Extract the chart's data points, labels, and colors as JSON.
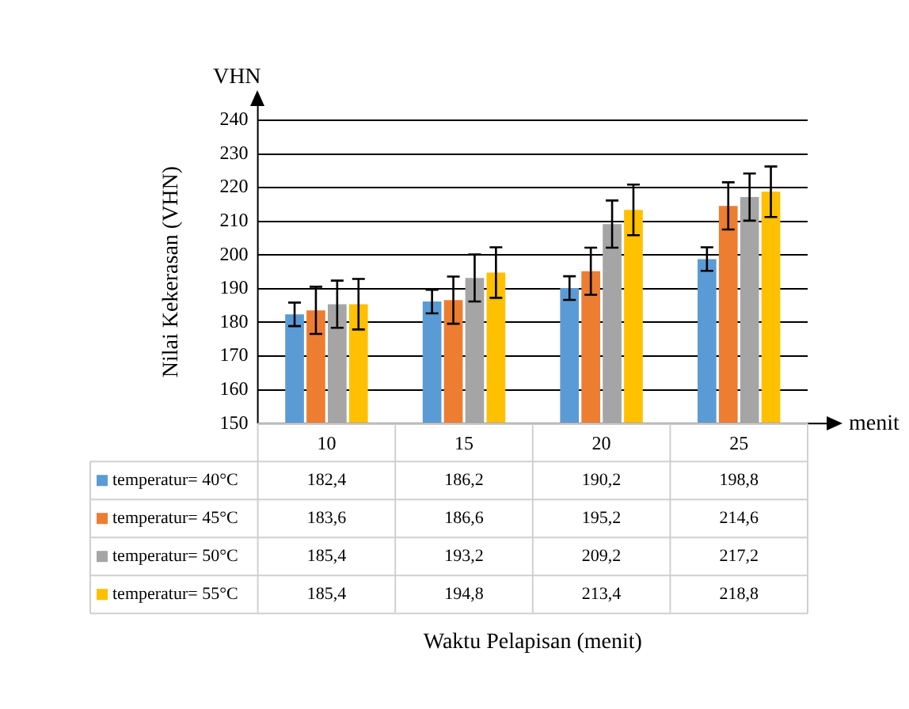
{
  "chart_data": {
    "type": "bar",
    "ylabel": "Nilai Kekerasan (VHN)",
    "xlabel": "menit",
    "annotations": [
      "VHN",
      "Waktu Pelapisan (menit)"
    ],
    "categories": [
      "10",
      "15",
      "20",
      "25"
    ],
    "series": [
      {
        "name": "temperatur= 40°C",
        "color": "#5b9bd5",
        "values": [
          182.4,
          186.2,
          190.2,
          198.8
        ],
        "value_labels": [
          "182,4",
          "186,2",
          "190,2",
          "198,8"
        ],
        "errors": [
          3.5,
          3.5,
          3.5,
          3.5
        ]
      },
      {
        "name": "temperatur= 45°C",
        "color": "#ed7d31",
        "values": [
          183.6,
          186.6,
          195.2,
          214.6
        ],
        "value_labels": [
          "183,6",
          "186,6",
          "195,2",
          "214,6"
        ],
        "errors": [
          7,
          7,
          7,
          7
        ]
      },
      {
        "name": "temperatur= 50°C",
        "color": "#a5a5a5",
        "values": [
          185.4,
          193.2,
          209.2,
          217.2
        ],
        "value_labels": [
          "185,4",
          "193,2",
          "209,2",
          "217,2"
        ],
        "errors": [
          7,
          7,
          7,
          7
        ]
      },
      {
        "name": "temperatur= 55°C",
        "color": "#ffc000",
        "values": [
          185.4,
          194.8,
          213.4,
          218.8
        ],
        "value_labels": [
          "185,4",
          "194,8",
          "213,4",
          "218,8"
        ],
        "errors": [
          7.5,
          7.5,
          7.5,
          7.5
        ]
      }
    ],
    "ylim": [
      150,
      240
    ],
    "yticks": [
      150,
      160,
      170,
      180,
      190,
      200,
      210,
      220,
      230,
      240
    ],
    "grid": "y",
    "legend": "bottom"
  }
}
